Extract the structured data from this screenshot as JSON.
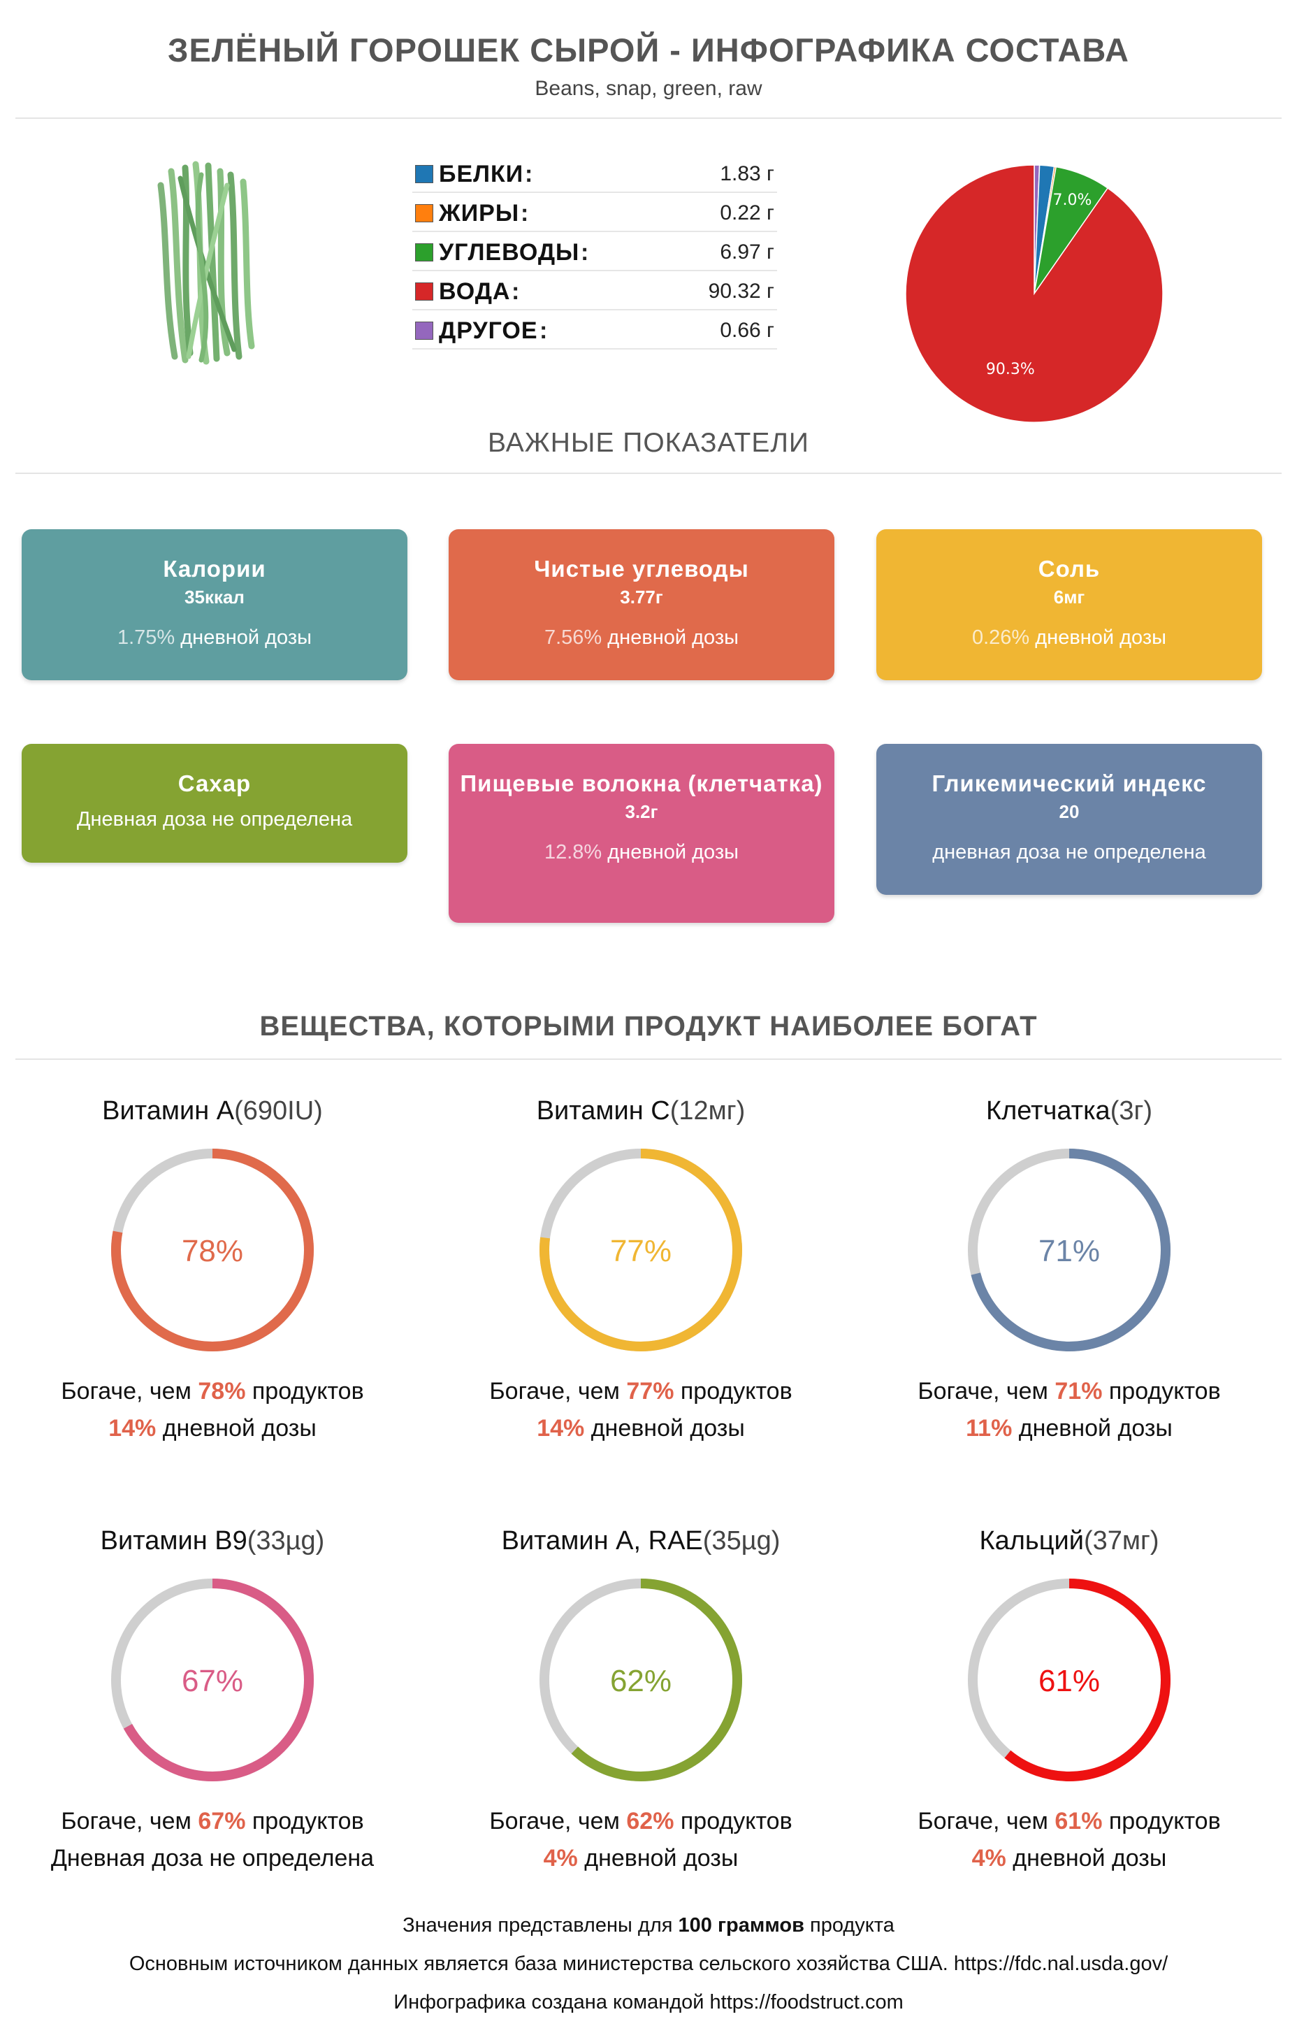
{
  "header": {
    "title": "ЗЕЛЁНЫЙ ГОРОШЕК СЫРОЙ - ИНФОГРАФИКА СОСТАВА",
    "subtitle": "Beans, snap, green, raw"
  },
  "macros": [
    {
      "name": "БЕЛКИ",
      "value": "1.83 г",
      "color": "#1f77b4"
    },
    {
      "name": "ЖИРЫ",
      "value": "0.22 г",
      "color": "#ff7f0e"
    },
    {
      "name": "УГЛЕВОДЫ",
      "value": "6.97 г",
      "color": "#2ca02c"
    },
    {
      "name": "ВОДА",
      "value": "90.32 г",
      "color": "#d62728"
    },
    {
      "name": "ДРУГОЕ",
      "value": "0.66 г",
      "color": "#9467bd"
    }
  ],
  "chart_data": {
    "type": "pie",
    "categories": [
      "БЕЛКИ",
      "ЖИРЫ",
      "УГЛЕВОДЫ",
      "ВОДА",
      "ДРУГОЕ"
    ],
    "values": [
      1.83,
      0.22,
      6.97,
      90.32,
      0.66
    ],
    "colors": [
      "#1f77b4",
      "#ff7f0e",
      "#2ca02c",
      "#d62728",
      "#9467bd"
    ],
    "labels": [
      "",
      "",
      "7.0%",
      "90.3%",
      ""
    ]
  },
  "important": {
    "heading": "ВАЖНЫЕ ПОКАЗАТЕЛИ",
    "cards": [
      {
        "title": "Калории",
        "value": "35ккал",
        "pct": "1.75%",
        "daily": "дневной дозы",
        "color": "#5f9ea0"
      },
      {
        "title": "Чистые углеводы",
        "value": "3.77г",
        "pct": "7.56%",
        "daily": "дневной дозы",
        "color": "#e06a4b"
      },
      {
        "title": "Соль",
        "value": "6мг",
        "pct": "0.26%",
        "daily": "дневной дозы",
        "color": "#f0b633"
      },
      {
        "title": "Сахар",
        "daily_full": "Дневная доза не определена",
        "color": "#85a332"
      },
      {
        "title": "Пищевые волокна (клетчатка)",
        "value": "3.2г",
        "pct": "12.8%",
        "daily": "дневной дозы",
        "color": "#d95c86"
      },
      {
        "title": "Гликемический индекс",
        "value": "20",
        "daily_full": "дневная доза не определена",
        "color": "#6b84a7"
      }
    ]
  },
  "rich": {
    "heading": "ВЕЩЕСТВА, КОТОРЫМИ ПРОДУКТ НАИБОЛЕЕ БОГАТ",
    "prefix": "Богаче, чем",
    "suffix": "продуктов",
    "daily_suffix": "дневной дозы",
    "items": [
      {
        "name": "Витамин A",
        "amount": "(690IU)",
        "percent": 78,
        "pct_label": "78%",
        "daily": "14%",
        "color": "#e06a4b"
      },
      {
        "name": "Витамин C",
        "amount": "(12мг)",
        "percent": 77,
        "pct_label": "77%",
        "daily": "14%",
        "color": "#f0b633"
      },
      {
        "name": "Клетчатка",
        "amount": "(3г)",
        "percent": 71,
        "pct_label": "71%",
        "daily": "11%",
        "color": "#6b84a7"
      },
      {
        "name": "Витамин B9",
        "amount": "(33µg)",
        "percent": 67,
        "pct_label": "67%",
        "daily_full": "Дневная доза не определена",
        "color": "#d95c86"
      },
      {
        "name": "Витамин A, RAE",
        "amount": "(35µg)",
        "percent": 62,
        "pct_label": "62%",
        "daily": "4%",
        "color": "#85a332"
      },
      {
        "name": "Кальций",
        "amount": "(37мг)",
        "percent": 61,
        "pct_label": "61%",
        "daily": "4%",
        "color": "#ee1111"
      }
    ]
  },
  "footer": {
    "line1_a": "Значения представлены для",
    "line1_b": "100",
    "line1_c": "граммов",
    "line1_d": "продукта",
    "line2": "Основным источником данных является база министерства сельского хозяйства США. https://fdc.nal.usda.gov/",
    "line3": "Инфографика создана командой https://foodstruct.com"
  }
}
